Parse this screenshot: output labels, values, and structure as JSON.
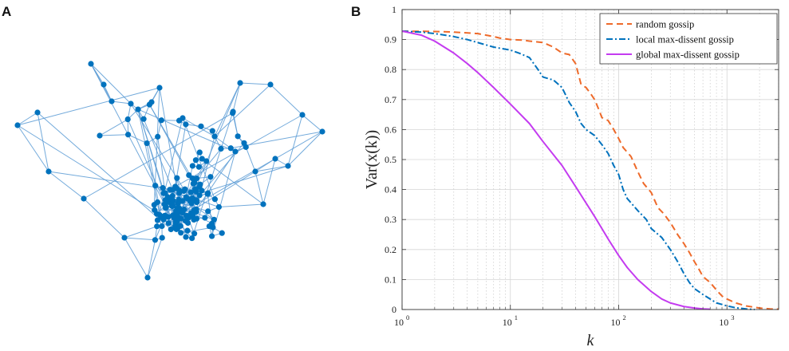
{
  "panel_a": {
    "label": "A",
    "node_color": "#0072BD",
    "edge_color": "#5B9BD5"
  },
  "panel_b": {
    "label": "B"
  },
  "chart_data": {
    "type": "line",
    "xscale": "log",
    "xlim": [
      1,
      3000
    ],
    "ylim": [
      0,
      1
    ],
    "xlabel": "k",
    "ylabel": "Var(x(k))",
    "grid": true,
    "legend_position": "top-right",
    "xticks": [
      {
        "base": "10",
        "exp": "0",
        "value": 1
      },
      {
        "base": "10",
        "exp": "1",
        "value": 10
      },
      {
        "base": "10",
        "exp": "2",
        "value": 100
      },
      {
        "base": "10",
        "exp": "3",
        "value": 1000
      }
    ],
    "yticks": [
      "0",
      "0.1",
      "0.2",
      "0.3",
      "0.4",
      "0.5",
      "0.6",
      "0.7",
      "0.8",
      "0.9",
      "1"
    ],
    "series": [
      {
        "name": "random gossip",
        "color": "#EE6A2A",
        "dash": "dashed",
        "points": [
          [
            1,
            0.928
          ],
          [
            2,
            0.927
          ],
          [
            3,
            0.925
          ],
          [
            5,
            0.92
          ],
          [
            7,
            0.91
          ],
          [
            8,
            0.905
          ],
          [
            10,
            0.9
          ],
          [
            13,
            0.898
          ],
          [
            15,
            0.895
          ],
          [
            20,
            0.89
          ],
          [
            25,
            0.875
          ],
          [
            30,
            0.855
          ],
          [
            35,
            0.85
          ],
          [
            40,
            0.82
          ],
          [
            45,
            0.75
          ],
          [
            50,
            0.74
          ],
          [
            55,
            0.72
          ],
          [
            60,
            0.7
          ],
          [
            65,
            0.67
          ],
          [
            70,
            0.64
          ],
          [
            80,
            0.63
          ],
          [
            90,
            0.6
          ],
          [
            100,
            0.57
          ],
          [
            110,
            0.54
          ],
          [
            130,
            0.51
          ],
          [
            150,
            0.46
          ],
          [
            170,
            0.42
          ],
          [
            200,
            0.39
          ],
          [
            230,
            0.34
          ],
          [
            260,
            0.32
          ],
          [
            300,
            0.29
          ],
          [
            350,
            0.25
          ],
          [
            400,
            0.22
          ],
          [
            450,
            0.19
          ],
          [
            500,
            0.16
          ],
          [
            550,
            0.135
          ],
          [
            600,
            0.11
          ],
          [
            700,
            0.09
          ],
          [
            800,
            0.065
          ],
          [
            900,
            0.045
          ],
          [
            1000,
            0.035
          ],
          [
            1200,
            0.022
          ],
          [
            1500,
            0.012
          ],
          [
            2000,
            0.005
          ],
          [
            2500,
            0.002
          ],
          [
            3000,
            0.001
          ]
        ]
      },
      {
        "name": "local max-dissent gossip",
        "color": "#0072BD",
        "dash": "dashdot",
        "points": [
          [
            1,
            0.928
          ],
          [
            1.5,
            0.925
          ],
          [
            2,
            0.92
          ],
          [
            3,
            0.91
          ],
          [
            4,
            0.9
          ],
          [
            5,
            0.89
          ],
          [
            7,
            0.875
          ],
          [
            10,
            0.865
          ],
          [
            12,
            0.855
          ],
          [
            15,
            0.84
          ],
          [
            18,
            0.8
          ],
          [
            20,
            0.775
          ],
          [
            25,
            0.765
          ],
          [
            30,
            0.74
          ],
          [
            35,
            0.69
          ],
          [
            40,
            0.66
          ],
          [
            45,
            0.62
          ],
          [
            50,
            0.6
          ],
          [
            60,
            0.58
          ],
          [
            70,
            0.55
          ],
          [
            80,
            0.52
          ],
          [
            90,
            0.48
          ],
          [
            100,
            0.45
          ],
          [
            110,
            0.4
          ],
          [
            120,
            0.37
          ],
          [
            150,
            0.33
          ],
          [
            180,
            0.3
          ],
          [
            200,
            0.27
          ],
          [
            250,
            0.24
          ],
          [
            300,
            0.2
          ],
          [
            350,
            0.16
          ],
          [
            400,
            0.12
          ],
          [
            450,
            0.09
          ],
          [
            500,
            0.07
          ],
          [
            600,
            0.05
          ],
          [
            700,
            0.035
          ],
          [
            800,
            0.022
          ],
          [
            1000,
            0.012
          ],
          [
            1200,
            0.006
          ],
          [
            1500,
            0.002
          ],
          [
            1800,
            0.0
          ]
        ]
      },
      {
        "name": "global max-dissent gossip",
        "color": "#C43BF0",
        "dash": "solid",
        "points": [
          [
            1,
            0.928
          ],
          [
            1.5,
            0.915
          ],
          [
            2,
            0.895
          ],
          [
            3,
            0.855
          ],
          [
            4,
            0.82
          ],
          [
            5,
            0.79
          ],
          [
            7,
            0.74
          ],
          [
            10,
            0.685
          ],
          [
            15,
            0.62
          ],
          [
            20,
            0.56
          ],
          [
            30,
            0.48
          ],
          [
            40,
            0.41
          ],
          [
            50,
            0.355
          ],
          [
            60,
            0.31
          ],
          [
            70,
            0.27
          ],
          [
            80,
            0.235
          ],
          [
            100,
            0.18
          ],
          [
            120,
            0.14
          ],
          [
            150,
            0.1
          ],
          [
            200,
            0.06
          ],
          [
            250,
            0.035
          ],
          [
            300,
            0.022
          ],
          [
            400,
            0.01
          ],
          [
            500,
            0.005
          ],
          [
            600,
            0.002
          ],
          [
            700,
            0.001
          ]
        ]
      }
    ]
  }
}
